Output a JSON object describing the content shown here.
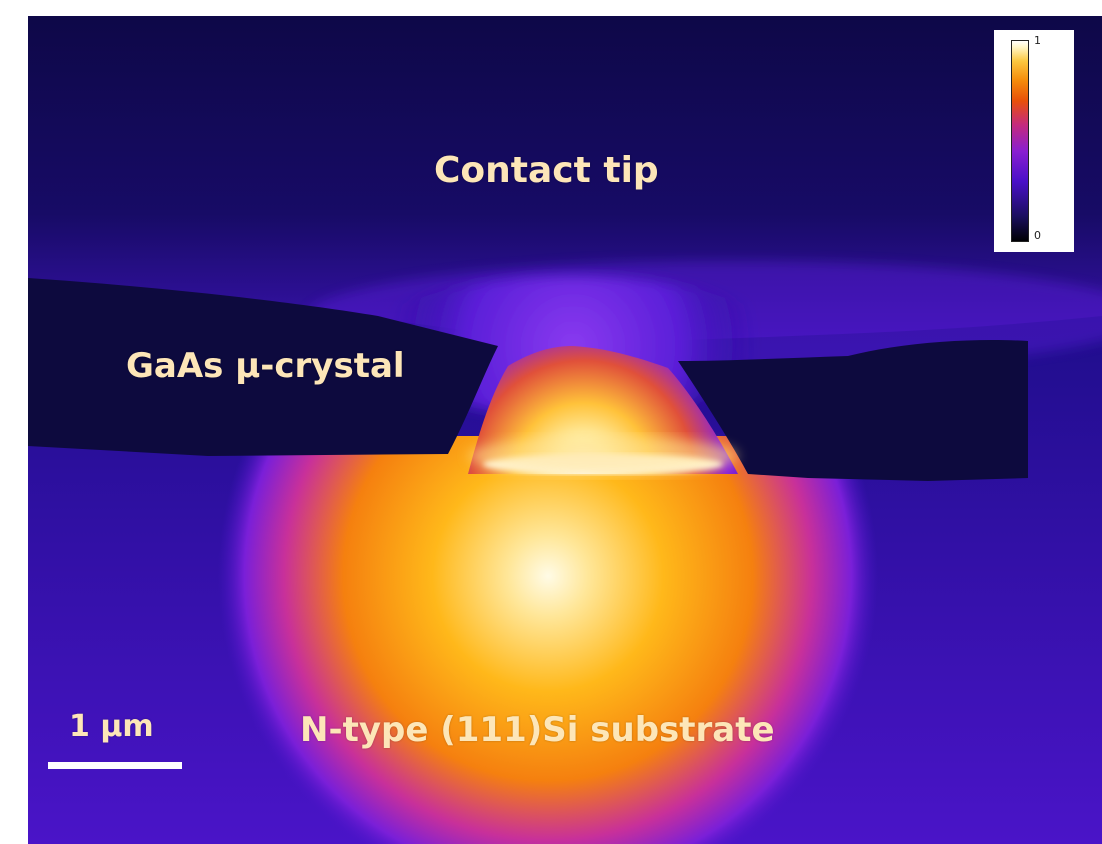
{
  "labels": {
    "contact_tip": "Contact tip",
    "crystal": "GaAs μ-crystal",
    "substrate": "N-type (111)Si substrate",
    "scale": "1 μm"
  },
  "colorbar": {
    "max_label": "1",
    "min_label": "0",
    "colormap": "fire"
  },
  "colors": {
    "background_deep": "#1e0d8a",
    "tip_region": "#140a5a",
    "crystal_gap": "#0d0a3e",
    "hot_center": "#fffbe6",
    "hot_mid": "#ffa500",
    "hot_edge": "#e8500a",
    "label_text": "#fde6b8",
    "scale_bar": "#ffffff"
  }
}
